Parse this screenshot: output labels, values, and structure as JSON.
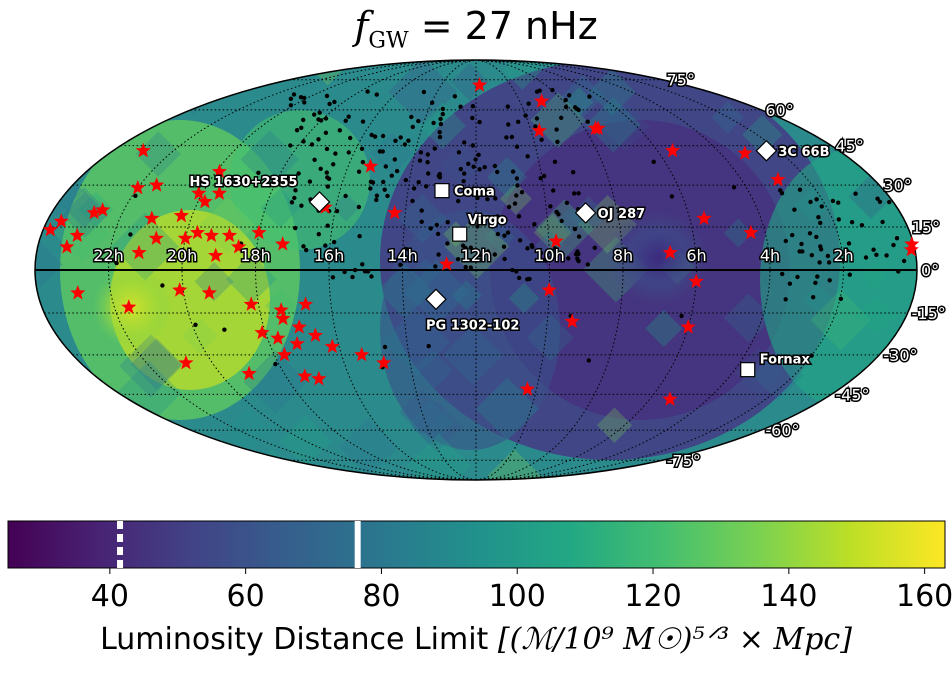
{
  "chart_data": {
    "type": "heatmap",
    "projection": "mollweide",
    "title": {
      "prefix": "f",
      "subscript": "GW",
      "suffix": " = 27 nHz"
    },
    "colormap": "viridis",
    "colorbar": {
      "label_text": "Luminosity Distance Limit ",
      "label_units": "[(ℳ/10⁹ M☉)⁵ᐟ³ × Mpc]",
      "range": [
        25,
        163
      ],
      "ticks": [
        "40",
        "60",
        "80",
        "100",
        "120",
        "140",
        "160"
      ],
      "tick_values": [
        40,
        60,
        80,
        100,
        120,
        140,
        160
      ],
      "markers": [
        {
          "value": 41.5,
          "style": "dashed"
        },
        {
          "value": 76.5,
          "style": "solid"
        }
      ]
    },
    "ra_ticks": [
      "22h",
      "20h",
      "18h",
      "16h",
      "14h",
      "12h",
      "10h",
      "8h",
      "6h",
      "4h",
      "2h"
    ],
    "ra_values_hours": [
      22,
      20,
      18,
      16,
      14,
      12,
      10,
      8,
      6,
      4,
      2
    ],
    "dec_ticks": [
      "75°",
      "60°",
      "45°",
      "30°",
      "15°",
      "0°",
      "-15°",
      "-30°",
      "-45°",
      "-60°",
      "-75°"
    ],
    "dec_values": [
      75,
      60,
      45,
      30,
      15,
      0,
      -15,
      -30,
      -45,
      -60,
      -75
    ],
    "grid": true,
    "labeled_sources": [
      {
        "name": "HS 1630+2355",
        "ra_h": 16.5,
        "dec": 23.9,
        "marker": "diamond"
      },
      {
        "name": "Coma",
        "ra_h": 13.0,
        "dec": 28.0,
        "marker": "square"
      },
      {
        "name": "Virgo",
        "ra_h": 12.45,
        "dec": 12.5,
        "marker": "square"
      },
      {
        "name": "OJ 287",
        "ra_h": 8.9,
        "dec": 20.0,
        "marker": "diamond"
      },
      {
        "name": "3C 66B",
        "ra_h": 2.4,
        "dec": 43.0,
        "marker": "diamond"
      },
      {
        "name": "PG 1302-102",
        "ra_h": 13.1,
        "dec": -10.2,
        "marker": "diamond"
      },
      {
        "name": "Fornax",
        "ra_h": 3.6,
        "dec": -35.5,
        "marker": "square"
      }
    ],
    "stars": [
      [
        11.8,
        72
      ],
      [
        9.0,
        64
      ],
      [
        7.5,
        52
      ],
      [
        7.6,
        52
      ],
      [
        9.7,
        51
      ],
      [
        5.5,
        43
      ],
      [
        3.2,
        42
      ],
      [
        2.9,
        32
      ],
      [
        4.4,
        13
      ],
      [
        5.6,
        18
      ],
      [
        9.8,
        10
      ],
      [
        6.7,
        6
      ],
      [
        12.8,
        2
      ],
      [
        15.3,
        37
      ],
      [
        14.3,
        20
      ],
      [
        16.3,
        22
      ],
      [
        19.9,
        35
      ],
      [
        20.1,
        27
      ],
      [
        22.0,
        29
      ],
      [
        23.0,
        43
      ],
      [
        21.5,
        30
      ],
      [
        19.8,
        24
      ],
      [
        19.5,
        27
      ],
      [
        20.3,
        19
      ],
      [
        22.6,
        21
      ],
      [
        22.8,
        20
      ],
      [
        21.1,
        18
      ],
      [
        20.0,
        11
      ],
      [
        19.7,
        13
      ],
      [
        19.3,
        12
      ],
      [
        18.8,
        12
      ],
      [
        18.5,
        8
      ],
      [
        18.0,
        13
      ],
      [
        17.3,
        9
      ],
      [
        20.8,
        11
      ],
      [
        23.0,
        12
      ],
      [
        23.2,
        8
      ],
      [
        21.2,
        6
      ],
      [
        19.1,
        5
      ],
      [
        23.6,
        17
      ],
      [
        23.8,
        14
      ],
      [
        22.9,
        -8
      ],
      [
        21.6,
        -13
      ],
      [
        20.1,
        -7
      ],
      [
        19.3,
        -8
      ],
      [
        18.2,
        -12
      ],
      [
        16.7,
        -12
      ],
      [
        17.4,
        -14
      ],
      [
        17.4,
        -17
      ],
      [
        17.0,
        -20
      ],
      [
        18.1,
        -22
      ],
      [
        17.7,
        -24
      ],
      [
        17.2,
        -26
      ],
      [
        16.6,
        -23
      ],
      [
        17.7,
        -30
      ],
      [
        16.2,
        -27
      ],
      [
        15.4,
        -30
      ],
      [
        14.8,
        -33
      ],
      [
        20.8,
        -33
      ],
      [
        19.1,
        -37
      ],
      [
        17.4,
        -38
      ],
      [
        17.0,
        -39
      ],
      [
        10.0,
        -7
      ],
      [
        9.3,
        -18
      ],
      [
        6.0,
        -4
      ],
      [
        6.0,
        -20
      ],
      [
        10.3,
        -43
      ],
      [
        5.3,
        -47
      ],
      [
        0.05,
        9
      ],
      [
        0.1,
        7
      ]
    ]
  }
}
